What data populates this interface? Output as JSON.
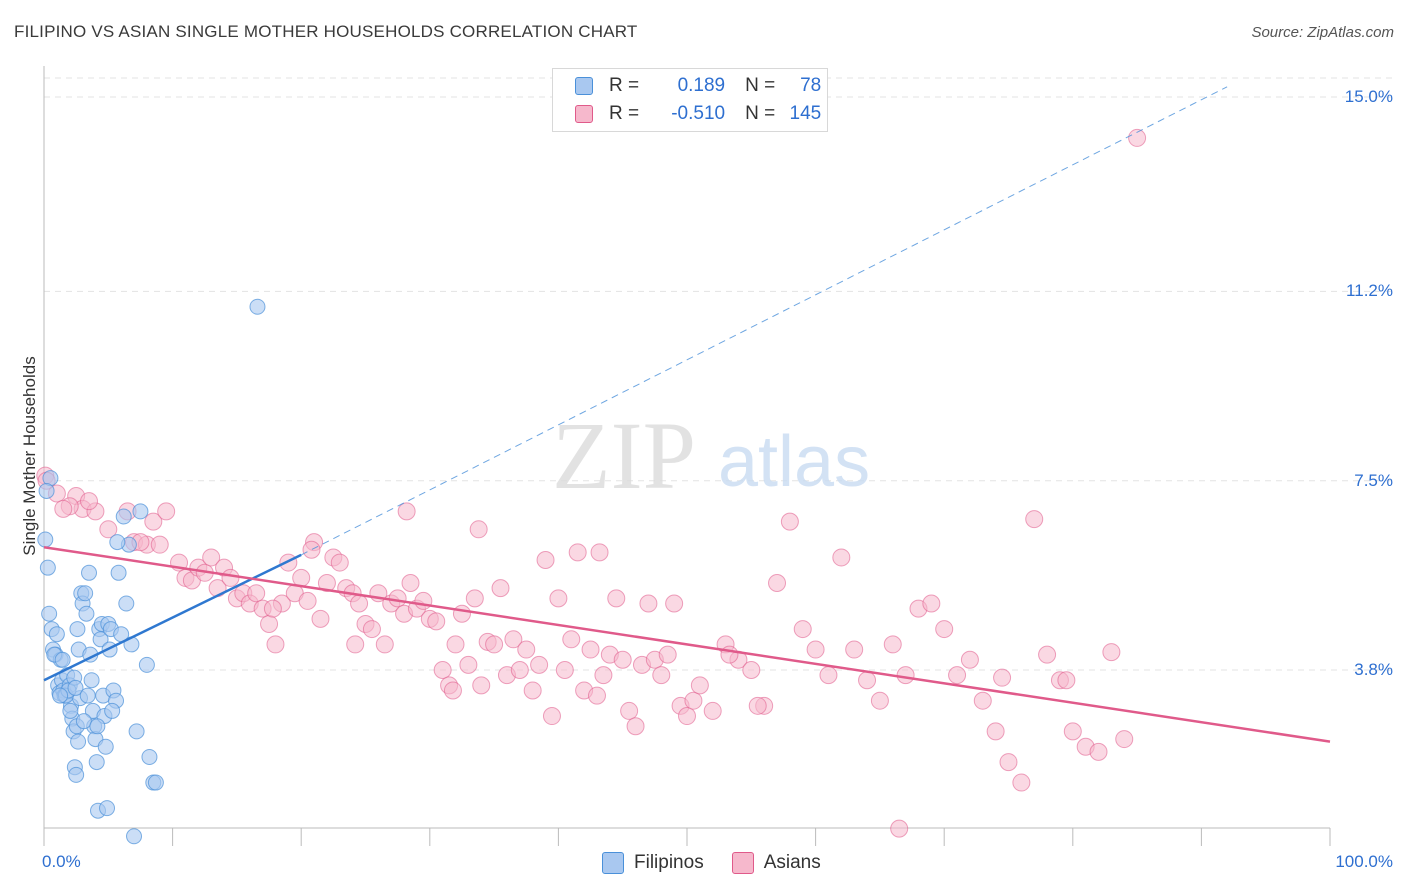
{
  "header": {
    "title": "FILIPINO VS ASIAN SINGLE MOTHER HOUSEHOLDS CORRELATION CHART",
    "source": "Source: ZipAtlas.com"
  },
  "legend": {
    "rows": [
      {
        "r_label": "R =",
        "r_value": "0.189",
        "n_label": "N =",
        "n_value": "78"
      },
      {
        "r_label": "R =",
        "r_value": "-0.510",
        "n_label": "N =",
        "n_value": "145"
      }
    ]
  },
  "bottom_legend": {
    "filipinos": "Filipinos",
    "asians": "Asians"
  },
  "watermark": {
    "zip": "ZIP",
    "atlas": "atlas"
  },
  "colors": {
    "filipino": "#4a90d9",
    "filipino_fill": "#a9c8f0",
    "asian": "#e05a8a",
    "asian_fill": "#f6b8cc",
    "tick_text": "#2e6fd0",
    "grid": "#e3e3e3"
  },
  "chart_data": {
    "type": "scatter",
    "title": "FILIPINO VS ASIAN SINGLE MOTHER HOUSEHOLDS CORRELATION CHART",
    "xlabel": "",
    "ylabel": "Single Mother Households",
    "xlim": [
      0,
      100
    ],
    "ylim": [
      0.4,
      15.5
    ],
    "x_ticks": [
      "0.0%",
      "100.0%"
    ],
    "y_ticks": [
      {
        "value": 3.8,
        "label": "3.8%"
      },
      {
        "value": 7.5,
        "label": "7.5%"
      },
      {
        "value": 11.2,
        "label": "11.2%"
      },
      {
        "value": 15.0,
        "label": "15.0%"
      }
    ],
    "grid": true,
    "legend_position": "top-center",
    "series": [
      {
        "name": "Filipinos",
        "R": 0.189,
        "N": 78,
        "trend": {
          "x": [
            0,
            20
          ],
          "y": [
            3.6,
            6.05
          ],
          "dashed_to": [
            92,
            15.2
          ]
        },
        "points": [
          [
            0.1,
            6.35
          ],
          [
            0.3,
            5.8
          ],
          [
            0.5,
            7.55
          ],
          [
            0.2,
            7.3
          ],
          [
            0.4,
            4.9
          ],
          [
            0.6,
            4.6
          ],
          [
            0.7,
            4.2
          ],
          [
            0.9,
            4.1
          ],
          [
            1.1,
            3.5
          ],
          [
            1.2,
            3.35
          ],
          [
            1.3,
            4.0
          ],
          [
            1.4,
            3.6
          ],
          [
            1.5,
            3.4
          ],
          [
            1.6,
            3.3
          ],
          [
            1.8,
            3.7
          ],
          [
            2.0,
            3.5
          ],
          [
            2.1,
            3.1
          ],
          [
            2.2,
            2.85
          ],
          [
            2.3,
            2.6
          ],
          [
            2.4,
            1.9
          ],
          [
            2.5,
            1.75
          ],
          [
            2.6,
            4.6
          ],
          [
            2.7,
            4.2
          ],
          [
            2.8,
            3.25
          ],
          [
            2.9,
            5.3
          ],
          [
            3.0,
            5.1
          ],
          [
            3.2,
            5.3
          ],
          [
            3.3,
            4.9
          ],
          [
            3.5,
            5.7
          ],
          [
            3.6,
            4.1
          ],
          [
            3.7,
            3.6
          ],
          [
            3.8,
            3.0
          ],
          [
            3.9,
            2.7
          ],
          [
            4.0,
            2.45
          ],
          [
            4.1,
            2.0
          ],
          [
            4.2,
            1.05
          ],
          [
            4.3,
            4.6
          ],
          [
            4.4,
            4.4
          ],
          [
            4.5,
            4.7
          ],
          [
            4.6,
            3.3
          ],
          [
            4.7,
            2.9
          ],
          [
            4.8,
            2.3
          ],
          [
            4.9,
            1.1
          ],
          [
            5.0,
            4.7
          ],
          [
            5.2,
            4.6
          ],
          [
            5.4,
            3.4
          ],
          [
            5.6,
            3.2
          ],
          [
            5.8,
            5.7
          ],
          [
            6.0,
            4.5
          ],
          [
            6.2,
            6.8
          ],
          [
            6.4,
            5.1
          ],
          [
            6.6,
            6.25
          ],
          [
            6.8,
            4.3
          ],
          [
            7.0,
            0.55
          ],
          [
            7.2,
            2.6
          ],
          [
            7.5,
            6.9
          ],
          [
            8.0,
            3.9
          ],
          [
            8.2,
            2.1
          ],
          [
            8.5,
            1.6
          ],
          [
            8.7,
            1.6
          ],
          [
            1.0,
            4.5
          ],
          [
            1.7,
            3.3
          ],
          [
            1.9,
            3.4
          ],
          [
            2.05,
            3.0
          ],
          [
            2.35,
            3.65
          ],
          [
            2.45,
            3.45
          ],
          [
            2.55,
            2.7
          ],
          [
            2.65,
            2.4
          ],
          [
            0.8,
            4.1
          ],
          [
            1.45,
            4.0
          ],
          [
            3.1,
            2.8
          ],
          [
            3.4,
            3.3
          ],
          [
            4.15,
            2.7
          ],
          [
            5.1,
            4.2
          ],
          [
            5.3,
            3.0
          ],
          [
            16.6,
            10.9
          ],
          [
            5.7,
            6.3
          ],
          [
            1.25,
            3.3
          ]
        ]
      },
      {
        "name": "Asians",
        "R": -0.51,
        "N": 145,
        "trend": {
          "x": [
            0,
            100
          ],
          "y": [
            6.2,
            2.4
          ]
        },
        "points": [
          [
            0.1,
            7.6
          ],
          [
            0.2,
            7.5
          ],
          [
            1.0,
            7.25
          ],
          [
            2.5,
            7.2
          ],
          [
            3.0,
            6.95
          ],
          [
            4.0,
            6.9
          ],
          [
            5.0,
            6.55
          ],
          [
            6.5,
            6.9
          ],
          [
            7.0,
            6.3
          ],
          [
            8.0,
            6.25
          ],
          [
            8.5,
            6.7
          ],
          [
            9.5,
            6.9
          ],
          [
            10.5,
            5.9
          ],
          [
            11.0,
            5.6
          ],
          [
            11.5,
            5.55
          ],
          [
            12.0,
            5.8
          ],
          [
            12.5,
            5.7
          ],
          [
            13.0,
            6.0
          ],
          [
            13.5,
            5.4
          ],
          [
            14.0,
            5.8
          ],
          [
            14.5,
            5.6
          ],
          [
            15.0,
            5.2
          ],
          [
            15.5,
            5.3
          ],
          [
            16.0,
            5.1
          ],
          [
            16.5,
            5.3
          ],
          [
            17.0,
            5.0
          ],
          [
            17.5,
            4.7
          ],
          [
            18.0,
            4.3
          ],
          [
            18.5,
            5.1
          ],
          [
            19.0,
            5.9
          ],
          [
            19.5,
            5.3
          ],
          [
            20.0,
            5.6
          ],
          [
            20.5,
            5.15
          ],
          [
            21.0,
            6.3
          ],
          [
            21.5,
            4.8
          ],
          [
            22.0,
            5.5
          ],
          [
            22.5,
            6.0
          ],
          [
            23.0,
            5.9
          ],
          [
            23.5,
            5.4
          ],
          [
            24.0,
            5.3
          ],
          [
            24.5,
            5.1
          ],
          [
            25.0,
            4.7
          ],
          [
            25.5,
            4.6
          ],
          [
            26.0,
            5.3
          ],
          [
            26.5,
            4.3
          ],
          [
            27.0,
            5.1
          ],
          [
            27.5,
            5.2
          ],
          [
            28.0,
            4.9
          ],
          [
            28.5,
            5.5
          ],
          [
            29.0,
            5.0
          ],
          [
            29.5,
            5.15
          ],
          [
            30.0,
            4.8
          ],
          [
            30.5,
            4.75
          ],
          [
            31.0,
            3.8
          ],
          [
            31.5,
            3.5
          ],
          [
            32.0,
            4.3
          ],
          [
            32.5,
            4.9
          ],
          [
            33.0,
            3.9
          ],
          [
            33.5,
            5.2
          ],
          [
            34.0,
            3.5
          ],
          [
            34.5,
            4.35
          ],
          [
            35.0,
            4.3
          ],
          [
            35.5,
            5.4
          ],
          [
            36.0,
            3.7
          ],
          [
            36.5,
            4.4
          ],
          [
            37.0,
            3.8
          ],
          [
            37.5,
            4.2
          ],
          [
            38.0,
            3.4
          ],
          [
            38.5,
            3.9
          ],
          [
            39.0,
            5.95
          ],
          [
            39.5,
            2.9
          ],
          [
            40.0,
            5.2
          ],
          [
            40.5,
            3.8
          ],
          [
            41.0,
            4.4
          ],
          [
            41.5,
            6.1
          ],
          [
            42.0,
            3.4
          ],
          [
            42.5,
            4.2
          ],
          [
            43.0,
            3.3
          ],
          [
            43.5,
            3.7
          ],
          [
            44.0,
            4.1
          ],
          [
            44.5,
            5.2
          ],
          [
            45.0,
            4.0
          ],
          [
            45.5,
            3.0
          ],
          [
            46.0,
            2.7
          ],
          [
            46.5,
            3.9
          ],
          [
            47.0,
            5.1
          ],
          [
            47.5,
            4.0
          ],
          [
            48.0,
            3.7
          ],
          [
            48.5,
            4.1
          ],
          [
            49.0,
            5.1
          ],
          [
            49.5,
            3.1
          ],
          [
            50.0,
            2.9
          ],
          [
            50.5,
            3.2
          ],
          [
            51.0,
            3.5
          ],
          [
            52.0,
            3.0
          ],
          [
            53.0,
            4.3
          ],
          [
            54.0,
            4.0
          ],
          [
            55.0,
            3.8
          ],
          [
            56.0,
            3.1
          ],
          [
            57.0,
            5.5
          ],
          [
            58.0,
            6.7
          ],
          [
            59.0,
            4.6
          ],
          [
            60.0,
            4.2
          ],
          [
            61.0,
            3.7
          ],
          [
            62.0,
            6.0
          ],
          [
            63.0,
            4.2
          ],
          [
            64.0,
            3.6
          ],
          [
            65.0,
            3.2
          ],
          [
            66.0,
            4.3
          ],
          [
            67.0,
            3.7
          ],
          [
            68.0,
            5.0
          ],
          [
            69.0,
            5.1
          ],
          [
            70.0,
            4.6
          ],
          [
            71.0,
            3.7
          ],
          [
            72.0,
            4.0
          ],
          [
            73.0,
            3.2
          ],
          [
            74.0,
            2.6
          ],
          [
            75.0,
            2.0
          ],
          [
            76.0,
            1.6
          ],
          [
            77.0,
            6.75
          ],
          [
            78.0,
            4.1
          ],
          [
            79.0,
            3.6
          ],
          [
            80.0,
            2.6
          ],
          [
            81.0,
            2.3
          ],
          [
            82.0,
            2.2
          ],
          [
            83.0,
            4.15
          ],
          [
            84.0,
            2.45
          ],
          [
            66.5,
            0.7
          ],
          [
            85.0,
            14.2
          ],
          [
            9.0,
            6.25
          ],
          [
            2.0,
            7.0
          ],
          [
            1.5,
            6.95
          ],
          [
            3.5,
            7.1
          ],
          [
            33.8,
            6.55
          ],
          [
            20.8,
            6.15
          ],
          [
            55.5,
            3.1
          ],
          [
            31.8,
            3.4
          ],
          [
            28.2,
            6.9
          ],
          [
            7.5,
            6.3
          ],
          [
            17.8,
            5.0
          ],
          [
            24.2,
            4.3
          ],
          [
            43.2,
            6.1
          ],
          [
            53.3,
            4.1
          ],
          [
            74.5,
            3.65
          ],
          [
            79.5,
            3.6
          ]
        ]
      }
    ]
  }
}
